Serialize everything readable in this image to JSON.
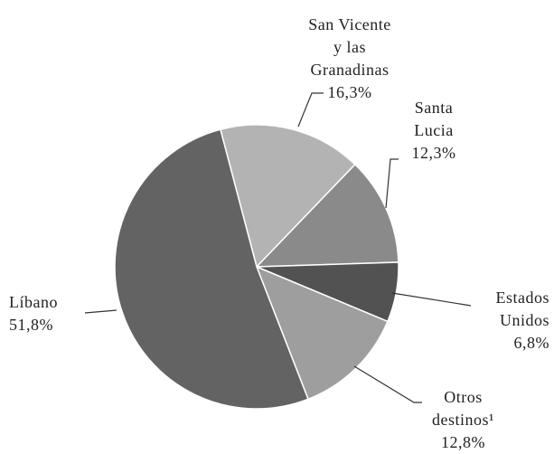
{
  "chart_data": {
    "type": "pie",
    "categories": [
      "San Vicente\ny las\nGranadinas",
      "Santa\nLucia",
      "Estados\nUnidos",
      "Otros\ndestinos¹",
      "Líbano"
    ],
    "values": [
      16.3,
      12.3,
      6.8,
      12.8,
      51.8
    ],
    "value_labels": [
      "16,3%",
      "12,3%",
      "6,8%",
      "12,8%",
      "51,8%"
    ],
    "colors": [
      "#b3b3b3",
      "#8a8a8a",
      "#525252",
      "#9e9e9e",
      "#636363"
    ]
  }
}
